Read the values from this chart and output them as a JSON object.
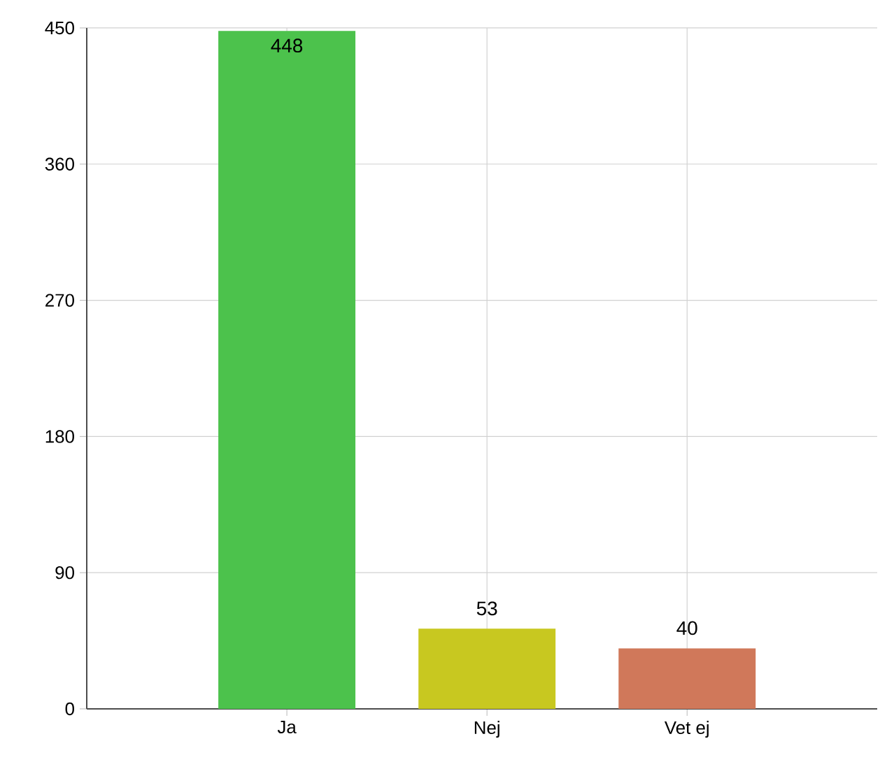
{
  "chart_data": {
    "type": "bar",
    "categories": [
      "Ja",
      "Nej",
      "Vet ej"
    ],
    "values": [
      448,
      53,
      40
    ],
    "colors": [
      "#4cc24c",
      "#c8c820",
      "#d0785a"
    ],
    "ylim": [
      0,
      450
    ],
    "yticks": [
      0,
      90,
      180,
      270,
      360,
      450
    ],
    "grid": true,
    "data_labels": true
  }
}
